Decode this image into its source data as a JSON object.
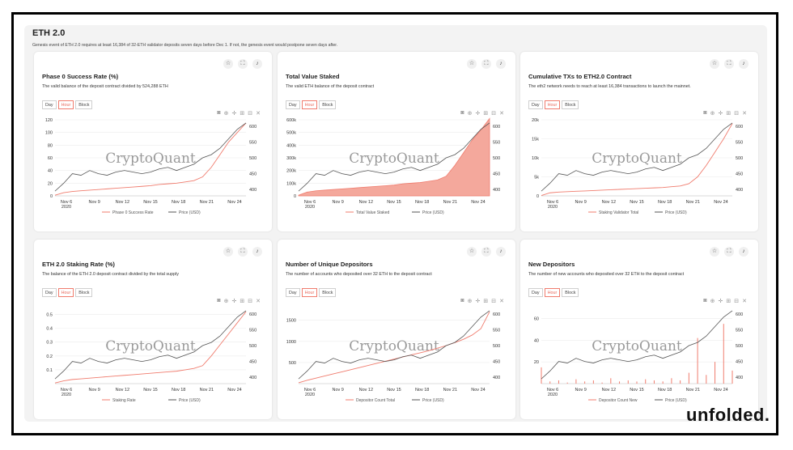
{
  "dashboard": {
    "title": "ETH 2.0",
    "subtitle": "Genesis event of ETH 2.0 requires at least 16,384 of 32-ETH validator deposits seven days before Dec 1. If not, the genesis event would postpone seven days after."
  },
  "tabs": [
    "Day",
    "Hour",
    "Block"
  ],
  "watermark": "CryptoQuant",
  "brand": "unfolded.",
  "icons": [
    "star-icon",
    "expand-icon",
    "bell-icon",
    "camera-icon",
    "zoom-icon",
    "pan-icon",
    "zoom-in-icon",
    "zoom-out-icon",
    "reset-icon"
  ],
  "colors": {
    "accent": "#f07c6e",
    "price": "#555555",
    "fill": "#f4a89c"
  },
  "panels": [
    {
      "title": "Phase 0 Success Rate (%)",
      "description": "The valid balance of the deposit contract divided by 524,288 ETH"
    },
    {
      "title": "Total Value Staked",
      "description": "The valid ETH balance of the deposit contract"
    },
    {
      "title": "Cumulative TXs to ETH2.0 Contract",
      "description": "The eth2 network needs to reach at least 16,384 transactions to launch the mainnet."
    },
    {
      "title": "ETH 2.0 Staking Rate (%)",
      "description": "The balance of the ETH 2.0 deposit contract divided by the total supply"
    },
    {
      "title": "Number of Unique Depositors",
      "description": "The number of accounts who deposited over 32 ETH to the deposit contract"
    },
    {
      "title": "New Depositors",
      "description": "The number of new accounts who deposited over 32 ETH to the deposit contract"
    }
  ],
  "chart_data": [
    {
      "type": "line",
      "style": "line",
      "x_ticks": [
        "Nov 6\n2020",
        "Nov 9",
        "Nov 12",
        "Nov 15",
        "Nov 18",
        "Nov 21",
        "Nov 24"
      ],
      "ylim": [
        0,
        120
      ],
      "y_ticks": [
        "0",
        "20",
        "40",
        "60",
        "80",
        "100",
        "120"
      ],
      "y2lim": [
        380,
        620
      ],
      "y2_ticks": [
        "400",
        "450",
        "500",
        "550",
        "600"
      ],
      "series": [
        {
          "name": "Phase 0 Success Rate",
          "values": [
            1,
            5,
            7,
            8,
            9,
            10,
            11,
            12,
            13,
            14,
            15,
            16,
            18,
            19,
            20,
            22,
            24,
            30,
            45,
            65,
            85,
            100,
            115
          ]
        },
        {
          "name": "Price (USD)",
          "values": [
            395,
            420,
            450,
            445,
            460,
            450,
            445,
            455,
            460,
            455,
            450,
            455,
            465,
            470,
            460,
            470,
            480,
            500,
            510,
            530,
            560,
            590,
            610
          ]
        }
      ]
    },
    {
      "type": "area",
      "style": "area",
      "x_ticks": [
        "Nov 6\n2020",
        "Nov 9",
        "Nov 12",
        "Nov 15",
        "Nov 18",
        "Nov 21",
        "Nov 24"
      ],
      "ylim": [
        0,
        600000
      ],
      "y_ticks": [
        "0",
        "100k",
        "200k",
        "300k",
        "400k",
        "500k",
        "600k"
      ],
      "y2lim": [
        380,
        620
      ],
      "y2_ticks": [
        "400",
        "450",
        "500",
        "550",
        "600"
      ],
      "series": [
        {
          "name": "Total Value Staked",
          "values": [
            5000,
            30000,
            40000,
            45000,
            50000,
            55000,
            60000,
            65000,
            70000,
            75000,
            80000,
            85000,
            95000,
            100000,
            105000,
            115000,
            125000,
            155000,
            240000,
            340000,
            440000,
            520000,
            610000
          ]
        },
        {
          "name": "Price (USD)",
          "values": [
            395,
            420,
            450,
            445,
            460,
            450,
            445,
            455,
            460,
            455,
            450,
            455,
            465,
            470,
            460,
            470,
            480,
            500,
            510,
            530,
            560,
            590,
            610
          ]
        }
      ]
    },
    {
      "type": "line",
      "style": "line",
      "x_ticks": [
        "Nov 6\n2020",
        "Nov 9",
        "Nov 12",
        "Nov 15",
        "Nov 18",
        "Nov 21",
        "Nov 24"
      ],
      "ylim": [
        0,
        20000
      ],
      "y_ticks": [
        "0",
        "5k",
        "10k",
        "15k",
        "20k"
      ],
      "y2lim": [
        380,
        620
      ],
      "y2_ticks": [
        "400",
        "450",
        "500",
        "550",
        "600"
      ],
      "series": [
        {
          "name": "Staking Validator Total",
          "values": [
            100,
            800,
            1000,
            1100,
            1200,
            1300,
            1400,
            1500,
            1600,
            1700,
            1800,
            1900,
            2000,
            2100,
            2200,
            2400,
            2600,
            3200,
            5000,
            8000,
            11500,
            15000,
            19000
          ]
        },
        {
          "name": "Price (USD)",
          "values": [
            395,
            420,
            450,
            445,
            460,
            450,
            445,
            455,
            460,
            455,
            450,
            455,
            465,
            470,
            460,
            470,
            480,
            500,
            510,
            530,
            560,
            590,
            610
          ]
        }
      ]
    },
    {
      "type": "line",
      "style": "line",
      "x_ticks": [
        "Nov 6\n2020",
        "Nov 9",
        "Nov 12",
        "Nov 15",
        "Nov 18",
        "Nov 21",
        "Nov 24"
      ],
      "ylim": [
        0,
        0.55
      ],
      "y_ticks": [
        "0.1",
        "0.2",
        "0.3",
        "0.4",
        "0.5"
      ],
      "y2lim": [
        380,
        620
      ],
      "y2_ticks": [
        "400",
        "450",
        "500",
        "550",
        "600"
      ],
      "series": [
        {
          "name": "Staking Rate",
          "values": [
            0.005,
            0.02,
            0.03,
            0.035,
            0.04,
            0.045,
            0.05,
            0.055,
            0.06,
            0.065,
            0.07,
            0.075,
            0.08,
            0.085,
            0.09,
            0.1,
            0.11,
            0.13,
            0.2,
            0.28,
            0.36,
            0.44,
            0.52
          ]
        },
        {
          "name": "Price (USD)",
          "values": [
            395,
            420,
            450,
            445,
            460,
            450,
            445,
            455,
            460,
            455,
            450,
            455,
            465,
            470,
            460,
            470,
            480,
            500,
            510,
            530,
            560,
            590,
            610
          ]
        }
      ]
    },
    {
      "type": "line",
      "style": "line",
      "x_ticks": [
        "Nov 6\n2020",
        "Nov 9",
        "Nov 12",
        "Nov 15",
        "Nov 18",
        "Nov 21",
        "Nov 24"
      ],
      "ylim": [
        0,
        1800
      ],
      "y_ticks": [
        "500",
        "1000",
        "1500"
      ],
      "y2lim": [
        380,
        620
      ],
      "y2_ticks": [
        "400",
        "450",
        "500",
        "550",
        "600"
      ],
      "series": [
        {
          "name": "Depositor Count Total",
          "values": [
            20,
            80,
            130,
            180,
            230,
            280,
            330,
            380,
            430,
            480,
            530,
            580,
            630,
            680,
            730,
            780,
            840,
            900,
            970,
            1050,
            1150,
            1300,
            1700
          ]
        },
        {
          "name": "Price (USD)",
          "values": [
            395,
            420,
            450,
            445,
            460,
            450,
            445,
            455,
            460,
            455,
            450,
            455,
            465,
            470,
            460,
            470,
            480,
            500,
            510,
            530,
            560,
            590,
            610
          ]
        }
      ]
    },
    {
      "type": "line",
      "style": "spiky",
      "x_ticks": [
        "Nov 6\n2020",
        "Nov 9",
        "Nov 12",
        "Nov 15",
        "Nov 18",
        "Nov 21",
        "Nov 24"
      ],
      "ylim": [
        0,
        70
      ],
      "y_ticks": [
        "20",
        "40",
        "60"
      ],
      "y2lim": [
        380,
        620
      ],
      "y2_ticks": [
        "400",
        "450",
        "500",
        "550",
        "600"
      ],
      "series": [
        {
          "name": "Depositor Count New",
          "values": [
            15,
            2,
            3,
            1,
            4,
            2,
            3,
            1,
            5,
            2,
            3,
            2,
            4,
            3,
            2,
            5,
            3,
            10,
            42,
            8,
            20,
            55,
            12
          ]
        },
        {
          "name": "Price (USD)",
          "values": [
            395,
            420,
            450,
            445,
            460,
            450,
            445,
            455,
            460,
            455,
            450,
            455,
            465,
            470,
            460,
            470,
            480,
            500,
            510,
            530,
            560,
            590,
            610
          ]
        }
      ]
    }
  ]
}
